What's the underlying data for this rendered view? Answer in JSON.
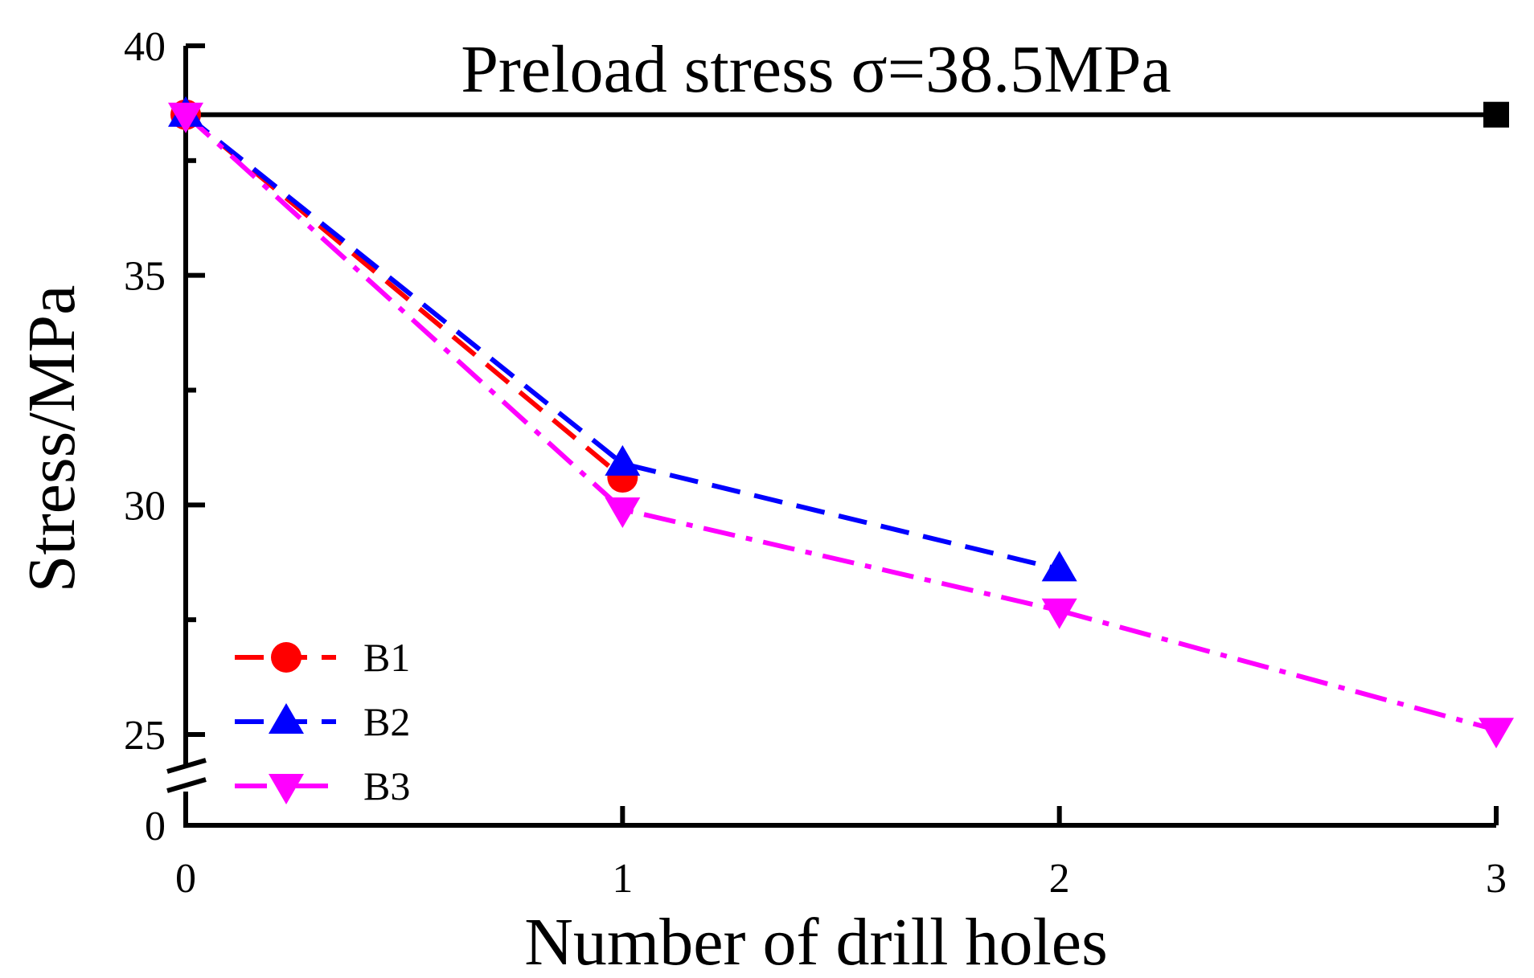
{
  "chart_data": {
    "type": "line",
    "title": "",
    "annotation": "Preload stress σ=38.5MPa",
    "xlabel": "Number of drill holes",
    "ylabel": "Stress/MPa",
    "x": [
      0,
      1,
      2,
      3
    ],
    "xlim": [
      0,
      3
    ],
    "ylim": [
      25,
      40
    ],
    "y_break_label": "0",
    "x_ticks": [
      "0",
      "1",
      "2",
      "3"
    ],
    "y_ticks": [
      "25",
      "30",
      "35",
      "40"
    ],
    "reference_line": {
      "y": 38.5,
      "x": [
        0,
        3
      ],
      "color": "#000000",
      "marker": "square"
    },
    "legend_position": "bottom-left",
    "series": [
      {
        "name": "B1",
        "x": [
          0,
          1
        ],
        "values": [
          38.5,
          30.6
        ],
        "color": "#ff0000",
        "marker": "circle",
        "dash": "dash"
      },
      {
        "name": "B2",
        "x": [
          0,
          1,
          2
        ],
        "values": [
          38.5,
          30.9,
          28.6
        ],
        "color": "#0000ff",
        "marker": "triangle-up",
        "dash": "dash"
      },
      {
        "name": "B3",
        "x": [
          0,
          1,
          2,
          3
        ],
        "values": [
          38.5,
          29.9,
          27.7,
          25.1
        ],
        "color": "#ff00ff",
        "marker": "triangle-down",
        "dash": "dashdot"
      }
    ]
  }
}
